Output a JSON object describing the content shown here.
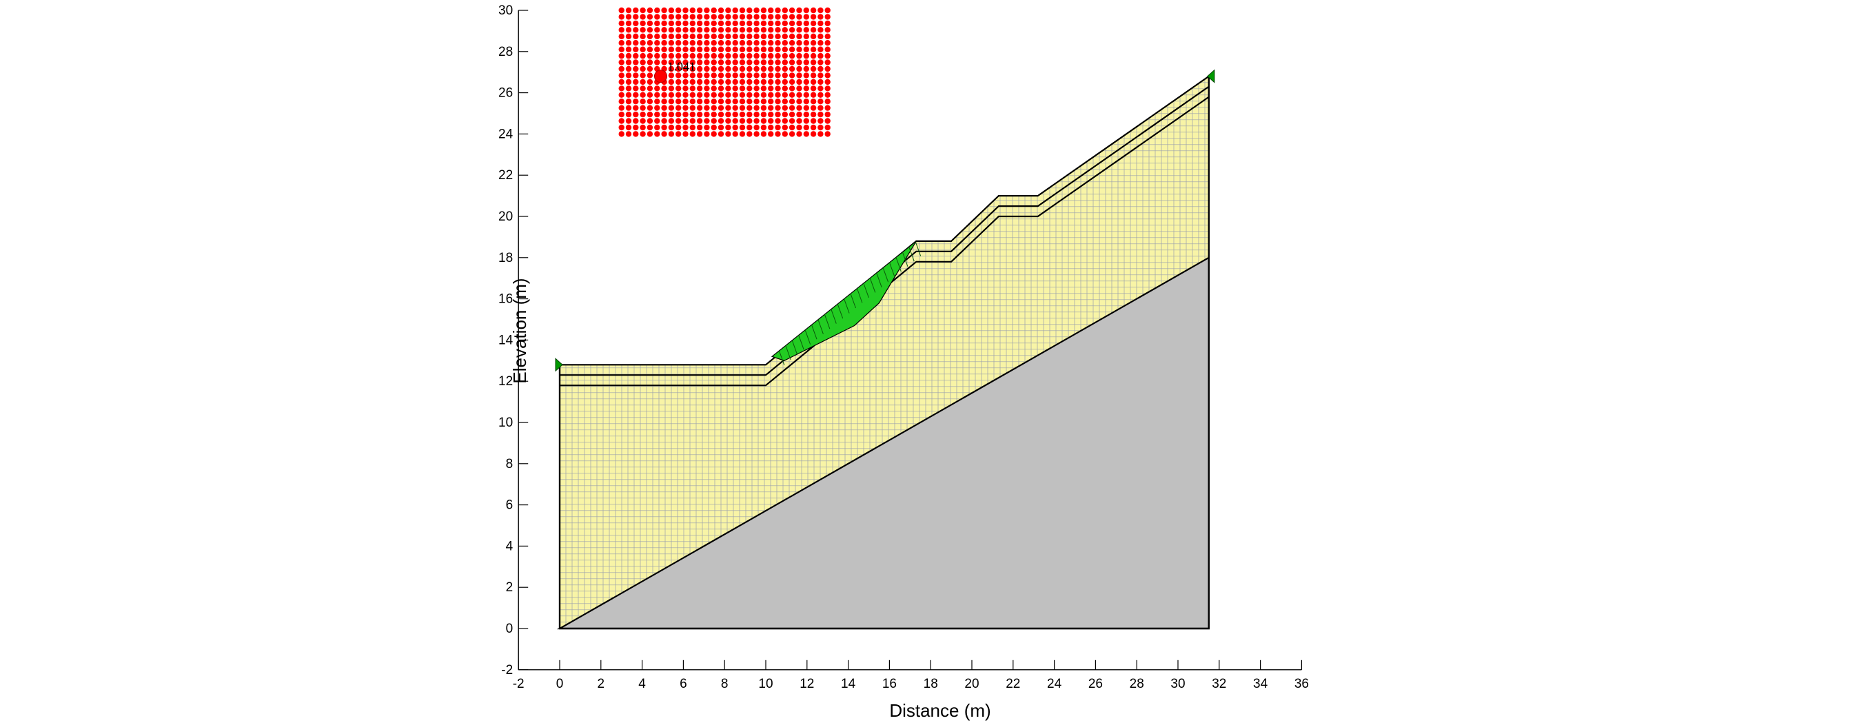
{
  "chart_data": {
    "type": "slope-stability-section",
    "xlabel": "Distance (m)",
    "ylabel": "Elevation (m)",
    "xlim": [
      -2,
      36
    ],
    "ylim": [
      -2,
      30
    ],
    "x_ticks": [
      -2,
      0,
      2,
      4,
      6,
      8,
      10,
      12,
      14,
      16,
      18,
      20,
      22,
      24,
      26,
      28,
      30,
      32,
      34,
      36
    ],
    "y_ticks": [
      -2,
      0,
      2,
      4,
      6,
      8,
      10,
      12,
      14,
      16,
      18,
      20,
      22,
      24,
      26,
      28,
      30
    ],
    "ground_surface": [
      [
        0,
        12.8
      ],
      [
        10,
        12.8
      ],
      [
        17.3,
        18.8
      ],
      [
        19,
        18.8
      ],
      [
        21.3,
        21
      ],
      [
        23.2,
        21
      ],
      [
        31.5,
        26.8
      ]
    ],
    "layer_offsets": [
      0.5,
      1.0
    ],
    "bedrock_line": [
      [
        0,
        0
      ],
      [
        31.5,
        18
      ]
    ],
    "section_outline": [
      [
        0,
        0
      ],
      [
        31.5,
        0
      ],
      [
        31.5,
        26.8
      ],
      [
        0,
        12.8
      ]
    ],
    "slip_mass": [
      [
        10.3,
        13.2
      ],
      [
        17.3,
        18.8
      ],
      [
        15.5,
        15.8
      ],
      [
        14.3,
        14.7
      ],
      [
        10.9,
        13.0
      ]
    ],
    "slip_entry_exit_markers": [
      [
        0,
        12.8
      ],
      [
        31.5,
        26.8
      ]
    ],
    "grid_of_slip_centres": {
      "x_range": [
        3,
        13
      ],
      "y_range": [
        24,
        30
      ],
      "columns": 30,
      "rows": 20,
      "critical_centre": [
        4.9,
        26.8
      ],
      "critical_label": "1.041"
    },
    "colors": {
      "soil": "#f8f4a6",
      "mesh": "#9aa0ad",
      "bedrock": "#c0c0c0",
      "slip_mass": "#22cc22",
      "grid_dots": "#ff0000",
      "boundary": "#000000",
      "marker": "#009900"
    }
  }
}
